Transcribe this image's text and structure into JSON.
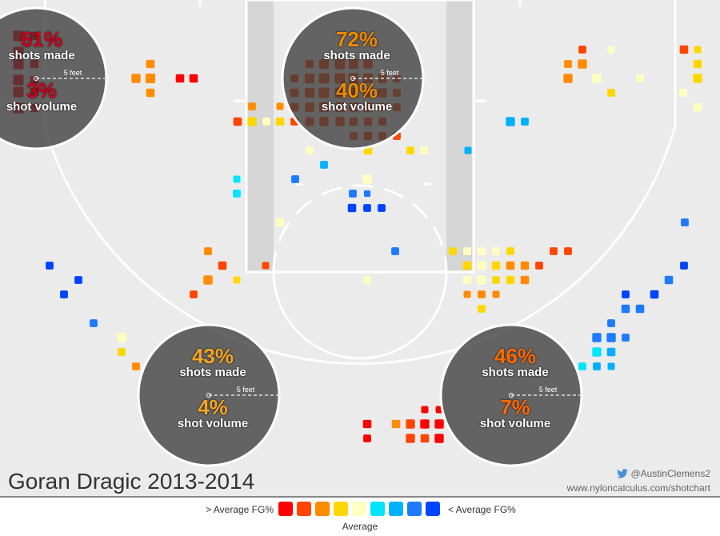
{
  "title": "Goran Dragic 2013-2014",
  "credits": {
    "twitter": "@AustinClemens2",
    "url": "www.nyloncalculus.com/shotchart"
  },
  "legend": {
    "above_label": "> Average FG%",
    "below_label": "< Average FG%",
    "average_label": "Average",
    "colors": [
      "#ff0000",
      "#ff4500",
      "#ff8c00",
      "#ffd700",
      "#ffffc0",
      "#00e5ff",
      "#00b0ff",
      "#1e7bff",
      "#0044ff"
    ]
  },
  "zones": [
    {
      "name": "left-corner",
      "made": "61%",
      "made_label": "shots made",
      "volume": "3%",
      "volume_label": "shot volume",
      "made_color": "#d0021b",
      "volume_color": "#d0021b",
      "scale_label": "5 feet"
    },
    {
      "name": "restricted-area",
      "made": "72%",
      "made_label": "shots made",
      "volume": "40%",
      "volume_label": "shot volume",
      "made_color": "#f08a00",
      "volume_color": "#f08a00",
      "scale_label": "5 feet"
    },
    {
      "name": "left-wing",
      "made": "43%",
      "made_label": "shots made",
      "volume": "4%",
      "volume_label": "shot volume",
      "made_color": "#f5a623",
      "volume_color": "#f5a623",
      "scale_label": "5 feet"
    },
    {
      "name": "right-wing",
      "made": "46%",
      "made_label": "shots made",
      "volume": "7%",
      "volume_label": "shot volume",
      "made_color": "#ff6a00",
      "volume_color": "#ff6a00",
      "scale_label": "5 feet"
    }
  ],
  "chart_data": {
    "type": "scatter",
    "title": "Goran Dragic 2013-2014",
    "color_scale": {
      "low": "> Average FG%",
      "mid": "Average",
      "high": "< Average FG%"
    },
    "points": [
      [
        23,
        45,
        1.0,
        0
      ],
      [
        43,
        45,
        0.7,
        0
      ],
      [
        23,
        65,
        1.0,
        0
      ],
      [
        23,
        80,
        1.0,
        0
      ],
      [
        43,
        80,
        0.7,
        0
      ],
      [
        23,
        100,
        1.0,
        0
      ],
      [
        43,
        100,
        0.7,
        0
      ],
      [
        23,
        115,
        1.0,
        0
      ],
      [
        43,
        115,
        0.7,
        0
      ],
      [
        23,
        135,
        1.0,
        0
      ],
      [
        43,
        135,
        0.7,
        0
      ],
      [
        188,
        80,
        0.7,
        2
      ],
      [
        170,
        98,
        0.8,
        2
      ],
      [
        188,
        98,
        0.9,
        2
      ],
      [
        188,
        116,
        0.7,
        2
      ],
      [
        225,
        98,
        0.7,
        0
      ],
      [
        242,
        98,
        0.7,
        0
      ],
      [
        315,
        133,
        0.6,
        2
      ],
      [
        350,
        133,
        0.5,
        2
      ],
      [
        297,
        152,
        0.7,
        1
      ],
      [
        315,
        152,
        0.8,
        3
      ],
      [
        333,
        152,
        0.6,
        4
      ],
      [
        350,
        152,
        0.7,
        3
      ],
      [
        368,
        98,
        0.6,
        1
      ],
      [
        387,
        80,
        0.7,
        1
      ],
      [
        387,
        98,
        0.9,
        1
      ],
      [
        405,
        80,
        0.9,
        1
      ],
      [
        405,
        98,
        1.0,
        1
      ],
      [
        425,
        80,
        1.0,
        1
      ],
      [
        425,
        98,
        1.0,
        1
      ],
      [
        442,
        80,
        0.9,
        1
      ],
      [
        442,
        98,
        1.0,
        1
      ],
      [
        460,
        80,
        0.8,
        1
      ],
      [
        460,
        98,
        0.9,
        1
      ],
      [
        478,
        98,
        0.8,
        1
      ],
      [
        496,
        98,
        0.6,
        1
      ],
      [
        368,
        116,
        0.7,
        1
      ],
      [
        387,
        116,
        0.9,
        1
      ],
      [
        405,
        116,
        1.0,
        1
      ],
      [
        425,
        116,
        1.0,
        1
      ],
      [
        442,
        116,
        0.9,
        1
      ],
      [
        460,
        116,
        0.8,
        1
      ],
      [
        478,
        116,
        0.8,
        1
      ],
      [
        496,
        116,
        0.6,
        1
      ],
      [
        368,
        134,
        0.7,
        1
      ],
      [
        387,
        134,
        0.8,
        1
      ],
      [
        405,
        134,
        0.9,
        1
      ],
      [
        425,
        134,
        0.9,
        1
      ],
      [
        442,
        134,
        0.8,
        1
      ],
      [
        460,
        134,
        0.8,
        1
      ],
      [
        478,
        134,
        0.6,
        1
      ],
      [
        496,
        134,
        0.6,
        1
      ],
      [
        368,
        152,
        0.6,
        1
      ],
      [
        387,
        152,
        0.7,
        1
      ],
      [
        405,
        152,
        0.8,
        1
      ],
      [
        425,
        152,
        0.8,
        1
      ],
      [
        442,
        152,
        0.7,
        1
      ],
      [
        460,
        152,
        0.7,
        1
      ],
      [
        478,
        152,
        0.6,
        1
      ],
      [
        442,
        170,
        0.6,
        1
      ],
      [
        460,
        170,
        0.7,
        1
      ],
      [
        478,
        170,
        0.6,
        1
      ],
      [
        496,
        170,
        0.6,
        1
      ],
      [
        387,
        188,
        0.6,
        4
      ],
      [
        460,
        188,
        0.7,
        3
      ],
      [
        513,
        188,
        0.6,
        3
      ],
      [
        530,
        188,
        0.6,
        4
      ],
      [
        585,
        188,
        0.5,
        6
      ],
      [
        405,
        206,
        0.6,
        6
      ],
      [
        369,
        224,
        0.6,
        7
      ],
      [
        459,
        224,
        0.8,
        4
      ],
      [
        296,
        224,
        0.5,
        5
      ],
      [
        296,
        242,
        0.6,
        5
      ],
      [
        441,
        242,
        0.6,
        7
      ],
      [
        459,
        242,
        0.4,
        7
      ],
      [
        440,
        260,
        0.7,
        8
      ],
      [
        459,
        260,
        0.6,
        8
      ],
      [
        477,
        260,
        0.6,
        8
      ],
      [
        350,
        278,
        0.7,
        4
      ],
      [
        638,
        152,
        0.8,
        6
      ],
      [
        656,
        152,
        0.6,
        6
      ],
      [
        728,
        62,
        0.6,
        1
      ],
      [
        764,
        62,
        0.5,
        4
      ],
      [
        855,
        62,
        0.7,
        1
      ],
      [
        872,
        62,
        0.5,
        3
      ],
      [
        710,
        80,
        0.6,
        2
      ],
      [
        728,
        80,
        0.8,
        2
      ],
      [
        872,
        80,
        0.7,
        3
      ],
      [
        710,
        98,
        0.8,
        2
      ],
      [
        746,
        98,
        0.8,
        4
      ],
      [
        800,
        98,
        0.6,
        4
      ],
      [
        872,
        98,
        0.8,
        3
      ],
      [
        764,
        116,
        0.6,
        3
      ],
      [
        854,
        116,
        0.6,
        4
      ],
      [
        872,
        134,
        0.7,
        4
      ],
      [
        260,
        314,
        0.6,
        2
      ],
      [
        278,
        332,
        0.7,
        1
      ],
      [
        332,
        332,
        0.5,
        1
      ],
      [
        260,
        350,
        0.8,
        2
      ],
      [
        296,
        350,
        0.5,
        3
      ],
      [
        242,
        368,
        0.6,
        1
      ],
      [
        62,
        332,
        0.6,
        8
      ],
      [
        98,
        350,
        0.6,
        8
      ],
      [
        80,
        368,
        0.6,
        8
      ],
      [
        117,
        404,
        0.6,
        7
      ],
      [
        152,
        422,
        0.8,
        4
      ],
      [
        152,
        440,
        0.6,
        3
      ],
      [
        170,
        458,
        0.6,
        2
      ],
      [
        459,
        350,
        0.6,
        4
      ],
      [
        494,
        314,
        0.6,
        7
      ],
      [
        566,
        314,
        0.6,
        3
      ],
      [
        584,
        314,
        0.6,
        4
      ],
      [
        602,
        314,
        0.6,
        4
      ],
      [
        620,
        314,
        0.6,
        4
      ],
      [
        638,
        314,
        0.6,
        3
      ],
      [
        692,
        314,
        0.6,
        1
      ],
      [
        710,
        314,
        0.6,
        1
      ],
      [
        584,
        332,
        0.7,
        3
      ],
      [
        602,
        332,
        0.8,
        4
      ],
      [
        620,
        332,
        0.7,
        3
      ],
      [
        638,
        332,
        0.7,
        2
      ],
      [
        656,
        332,
        0.7,
        2
      ],
      [
        674,
        332,
        0.6,
        1
      ],
      [
        584,
        350,
        0.7,
        4
      ],
      [
        602,
        350,
        0.8,
        4
      ],
      [
        620,
        350,
        0.6,
        3
      ],
      [
        638,
        350,
        0.7,
        3
      ],
      [
        656,
        350,
        0.7,
        2
      ],
      [
        584,
        368,
        0.5,
        2
      ],
      [
        602,
        368,
        0.6,
        2
      ],
      [
        620,
        368,
        0.5,
        2
      ],
      [
        602,
        386,
        0.6,
        3
      ],
      [
        856,
        278,
        0.6,
        7
      ],
      [
        855,
        332,
        0.6,
        8
      ],
      [
        836,
        350,
        0.7,
        7
      ],
      [
        782,
        368,
        0.6,
        8
      ],
      [
        818,
        368,
        0.7,
        8
      ],
      [
        782,
        386,
        0.7,
        7
      ],
      [
        800,
        386,
        0.7,
        7
      ],
      [
        764,
        404,
        0.6,
        7
      ],
      [
        746,
        422,
        0.8,
        7
      ],
      [
        764,
        422,
        0.8,
        7
      ],
      [
        782,
        422,
        0.6,
        7
      ],
      [
        746,
        440,
        0.8,
        5
      ],
      [
        764,
        440,
        0.7,
        6
      ],
      [
        728,
        458,
        0.6,
        5
      ],
      [
        746,
        458,
        0.6,
        6
      ],
      [
        764,
        458,
        0.5,
        6
      ],
      [
        459,
        530,
        0.7,
        0
      ],
      [
        495,
        530,
        0.7,
        2
      ],
      [
        513,
        530,
        0.8,
        1
      ],
      [
        531,
        530,
        0.8,
        0
      ],
      [
        549,
        530,
        0.8,
        0
      ],
      [
        459,
        548,
        0.6,
        0
      ],
      [
        513,
        548,
        0.8,
        1
      ],
      [
        531,
        548,
        0.7,
        1
      ],
      [
        549,
        548,
        0.8,
        0
      ],
      [
        531,
        512,
        0.5,
        0
      ],
      [
        549,
        512,
        0.5,
        0
      ]
    ]
  }
}
